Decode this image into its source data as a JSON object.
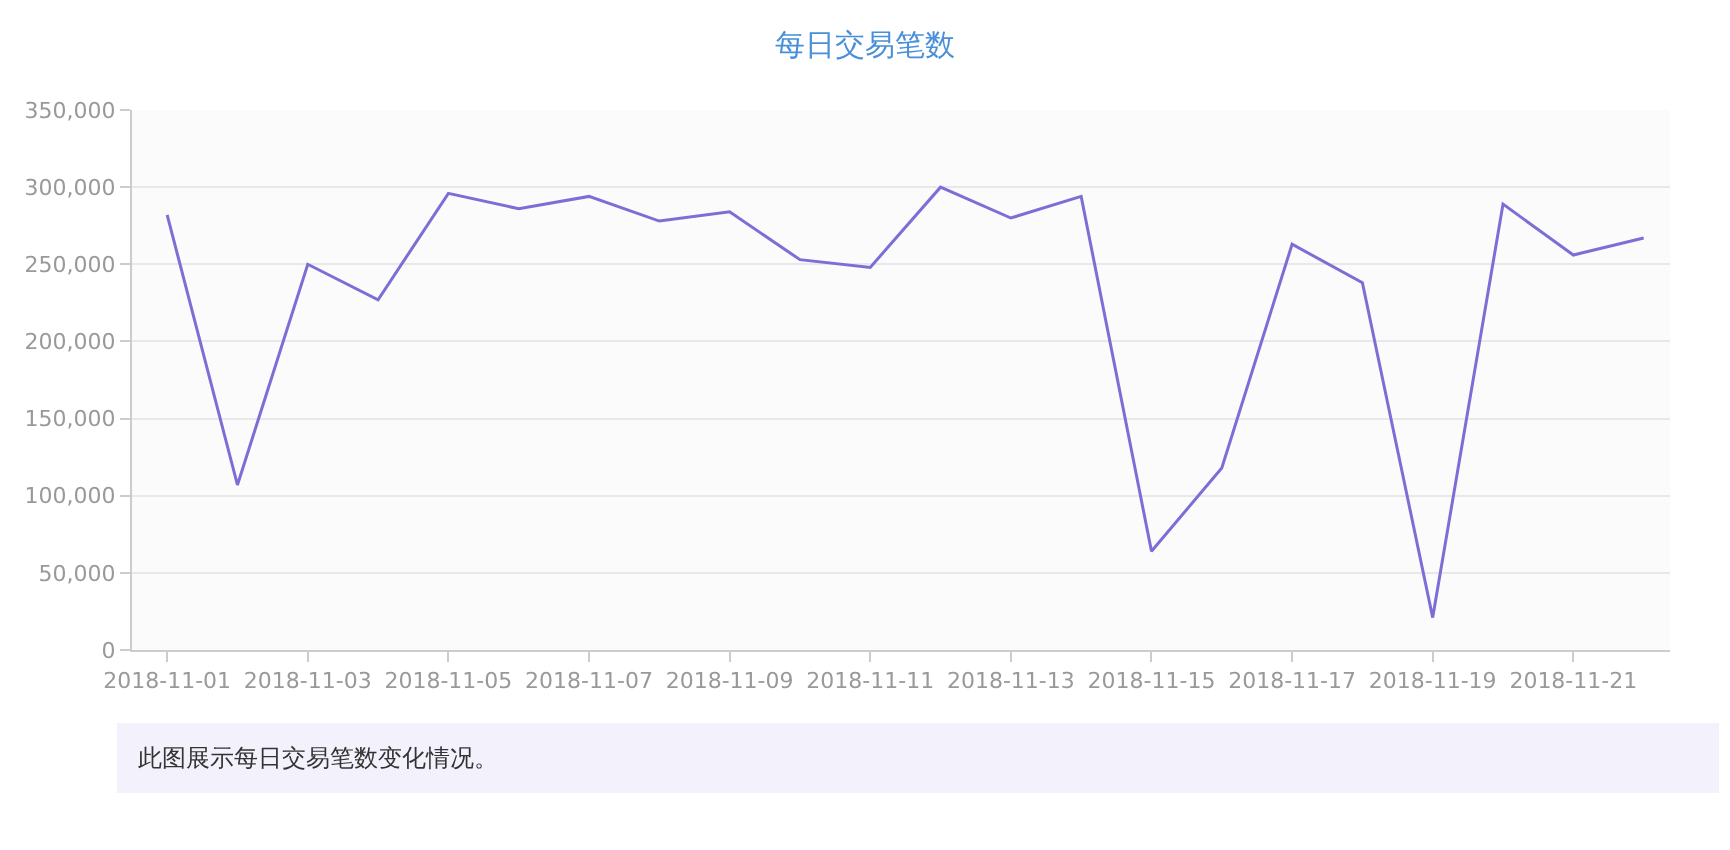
{
  "chart_data": {
    "type": "line",
    "title": "每日交易笔数",
    "x": [
      "2018-11-01",
      "2018-11-02",
      "2018-11-03",
      "2018-11-04",
      "2018-11-05",
      "2018-11-06",
      "2018-11-07",
      "2018-11-08",
      "2018-11-09",
      "2018-11-10",
      "2018-11-11",
      "2018-11-12",
      "2018-11-13",
      "2018-11-14",
      "2018-11-15",
      "2018-11-16",
      "2018-11-17",
      "2018-11-18",
      "2018-11-19",
      "2018-11-20",
      "2018-11-21",
      "2018-11-22"
    ],
    "series": [
      {
        "color": "#7b6fd6",
        "values": [
          282000,
          107000,
          250000,
          227000,
          296000,
          286000,
          294000,
          278000,
          284000,
          253000,
          248000,
          300000,
          280000,
          294000,
          64000,
          118000,
          263000,
          238000,
          21000,
          289000,
          256000,
          267000
        ]
      }
    ],
    "xlim": [
      "2018-10-31T12:00",
      "2018-11-22T09:00"
    ],
    "xticks": [
      "2018-11-01",
      "2018-11-03",
      "2018-11-05",
      "2018-11-07",
      "2018-11-09",
      "2018-11-11",
      "2018-11-13",
      "2018-11-15",
      "2018-11-17",
      "2018-11-19",
      "2018-11-21"
    ],
    "ylim": [
      0,
      350000
    ],
    "yticks": [
      {
        "value": 0,
        "label": "0"
      },
      {
        "value": 50000,
        "label": "50,000"
      },
      {
        "value": 100000,
        "label": "100,000"
      },
      {
        "value": 150000,
        "label": "150,000"
      },
      {
        "value": 200000,
        "label": "200,000"
      },
      {
        "value": 250000,
        "label": "250,000"
      },
      {
        "value": 300000,
        "label": "300,000"
      },
      {
        "value": 350000,
        "label": "350,000"
      }
    ],
    "grid": "y",
    "marker": "none",
    "line_style": "solid",
    "annotations": [
      "此图展示每日交易笔数变化情况。"
    ]
  }
}
